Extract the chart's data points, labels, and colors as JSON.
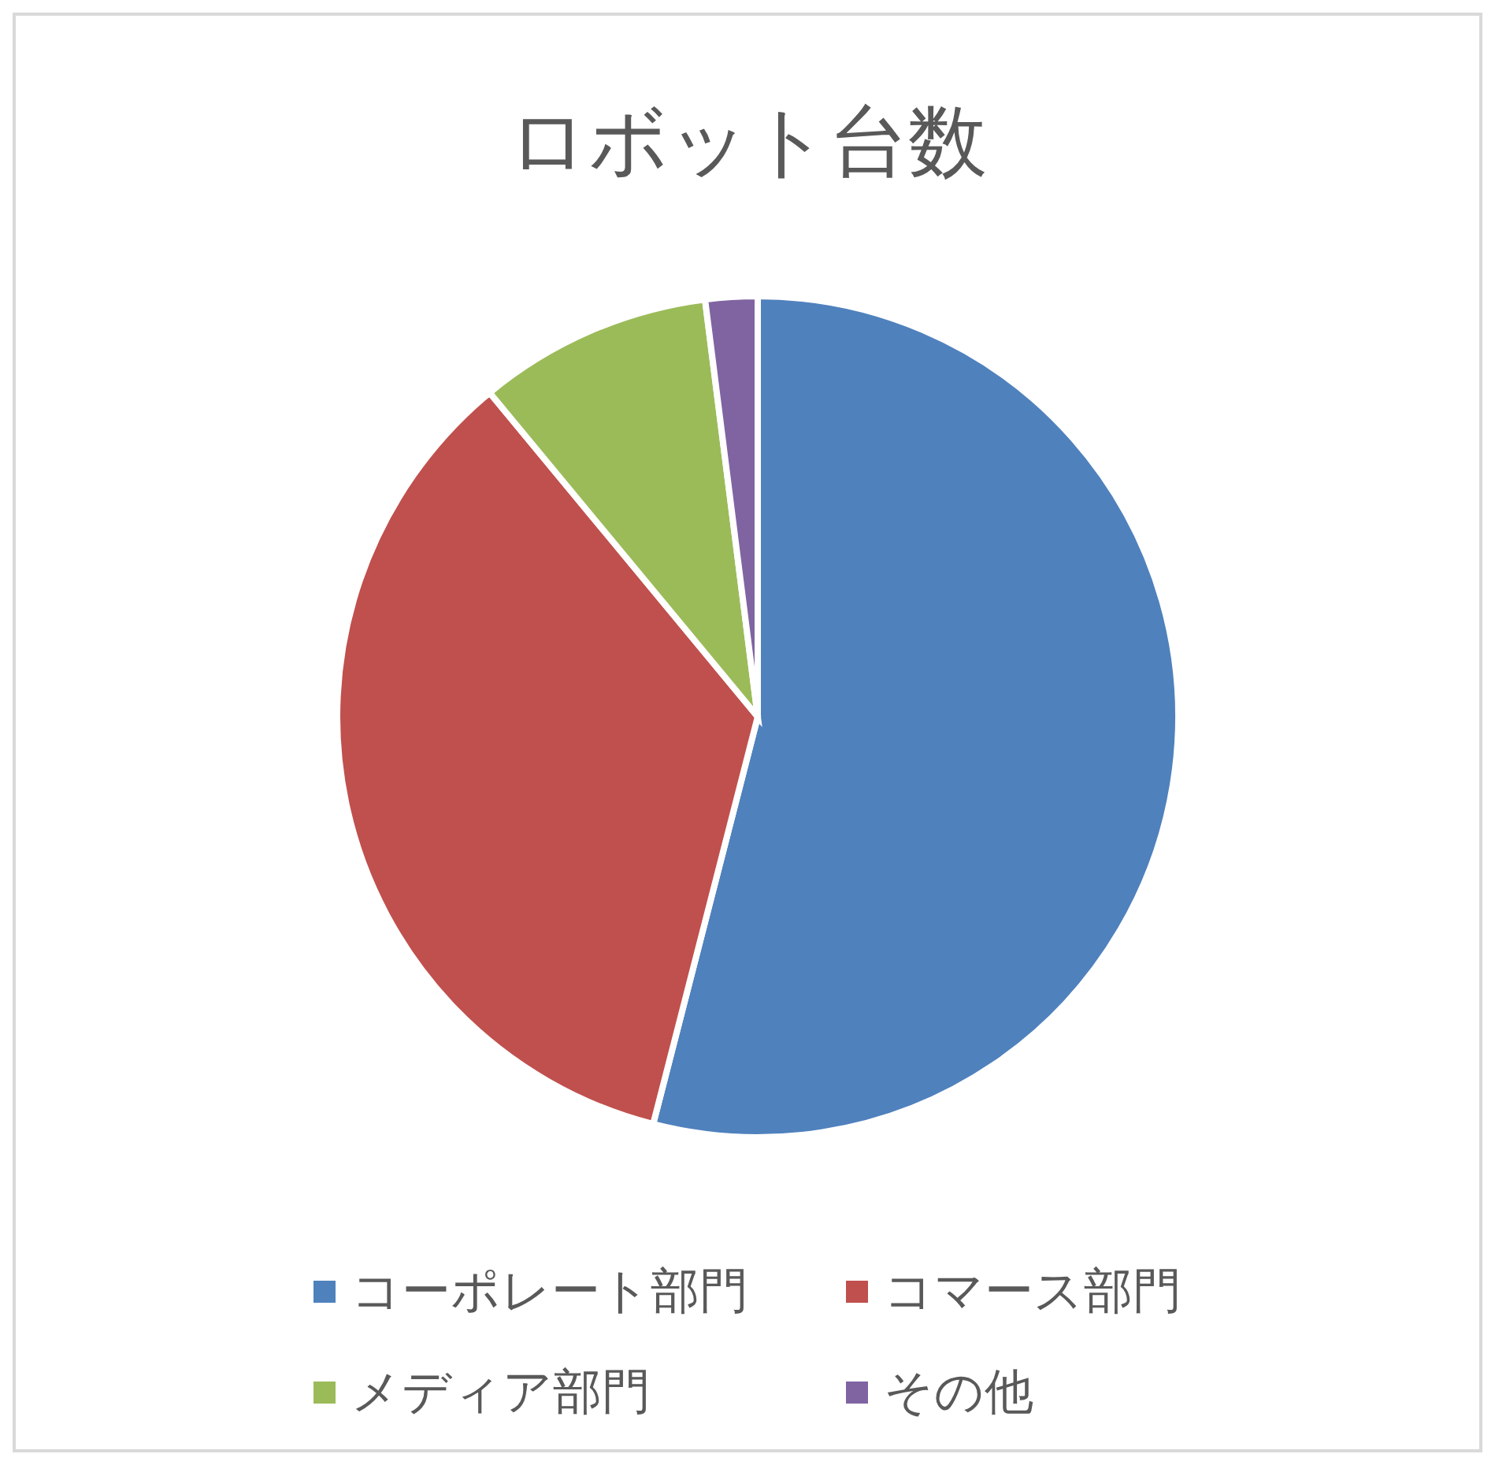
{
  "chart_data": {
    "type": "pie",
    "title": "ロボット台数",
    "categories": [
      "コーポレート部門",
      "コマース部門",
      "メディア部門",
      "その他"
    ],
    "values": [
      54,
      35,
      9,
      2
    ],
    "colors": [
      "#4f81bd",
      "#c0504d",
      "#9bbb59",
      "#8064a2"
    ],
    "legend": "bottom"
  }
}
